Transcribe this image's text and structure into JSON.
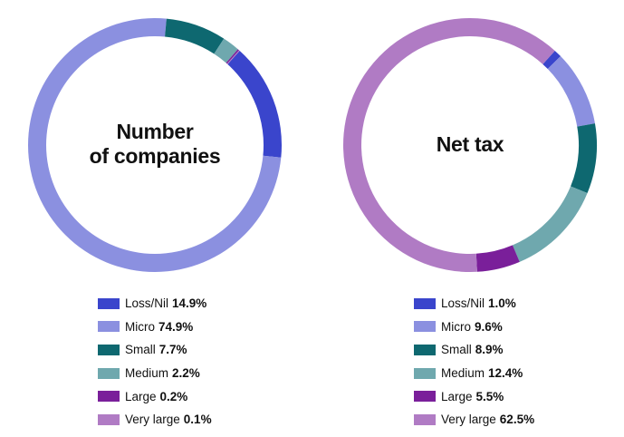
{
  "chart_data": [
    {
      "type": "pie",
      "title": "Number of companies",
      "title_lines": [
        "Number",
        "of companies"
      ],
      "categories": [
        "Loss/Nil",
        "Micro",
        "Small",
        "Medium",
        "Large",
        "Very large"
      ],
      "values": [
        14.9,
        74.9,
        7.7,
        2.2,
        0.2,
        0.1
      ],
      "labels": [
        "14.9%",
        "74.9%",
        "7.7%",
        "2.2%",
        "0.2%",
        "0.1%"
      ],
      "legend": "bottom"
    },
    {
      "type": "pie",
      "title": "Net tax",
      "title_lines": [
        "Net tax"
      ],
      "categories": [
        "Loss/Nil",
        "Micro",
        "Small",
        "Medium",
        "Large",
        "Very large"
      ],
      "values": [
        1.0,
        9.6,
        8.9,
        12.4,
        5.5,
        62.5
      ],
      "labels": [
        "1.0%",
        "9.6%",
        "8.9%",
        "12.4%",
        "5.5%",
        "62.5%"
      ],
      "legend": "bottom"
    }
  ],
  "colors": [
    "#3a45cc",
    "#8b90e0",
    "#0e6870",
    "#6fa8ae",
    "#7a1f9a",
    "#b07bc4"
  ]
}
